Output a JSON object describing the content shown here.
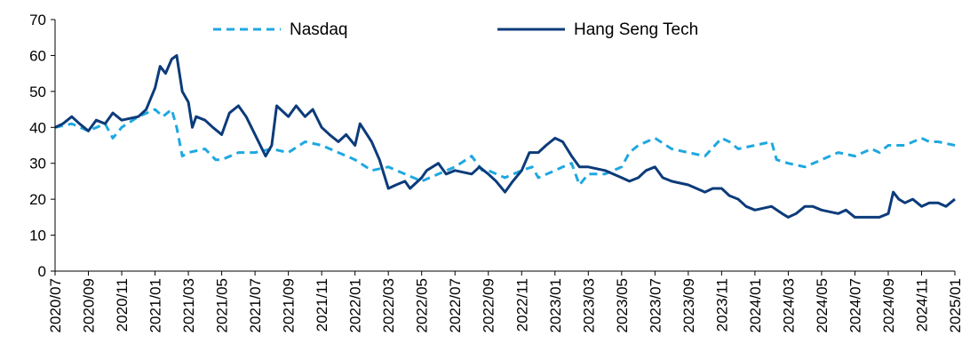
{
  "chart_data": {
    "type": "line",
    "title": "",
    "xlabel": "",
    "ylabel": "",
    "ylim": [
      0,
      70
    ],
    "yticks": [
      0,
      10,
      20,
      30,
      40,
      50,
      60,
      70
    ],
    "x_tick_labels": [
      "2020/07",
      "2020/09",
      "2020/11",
      "2021/01",
      "2021/03",
      "2021/05",
      "2021/07",
      "2021/09",
      "2021/11",
      "2022/01",
      "2022/03",
      "2022/05",
      "2022/07",
      "2022/09",
      "2022/11",
      "2023/01",
      "2023/03",
      "2023/05",
      "2023/07",
      "2023/09",
      "2023/11",
      "2024/01",
      "2024/03",
      "2024/05",
      "2024/07",
      "2024/09",
      "2024/11",
      "2025/01"
    ],
    "grid": false,
    "legend_position": "top",
    "series": [
      {
        "name": "Nasdaq",
        "color": "#1fa8e0",
        "style": "dashed",
        "points": [
          [
            "2020-07",
            40
          ],
          [
            "2020-08",
            41
          ],
          [
            "2020-09",
            39
          ],
          [
            "2020-10",
            41
          ],
          [
            "2020-10-15",
            37
          ],
          [
            "2020-11",
            40
          ],
          [
            "2020-12",
            43
          ],
          [
            "2021-01",
            45
          ],
          [
            "2021-01-15",
            43
          ],
          [
            "2021-02",
            45
          ],
          [
            "2021-02-10",
            40
          ],
          [
            "2021-02-20",
            32
          ],
          [
            "2021-03",
            33
          ],
          [
            "2021-04",
            34
          ],
          [
            "2021-04-20",
            31
          ],
          [
            "2021-05",
            31
          ],
          [
            "2021-06",
            33
          ],
          [
            "2021-07",
            33
          ],
          [
            "2021-08",
            34
          ],
          [
            "2021-09",
            33
          ],
          [
            "2021-10",
            36
          ],
          [
            "2021-11",
            35
          ],
          [
            "2021-12",
            33
          ],
          [
            "2022-01",
            31
          ],
          [
            "2022-02",
            28
          ],
          [
            "2022-03",
            29
          ],
          [
            "2022-04",
            27
          ],
          [
            "2022-05",
            25
          ],
          [
            "2022-06",
            27
          ],
          [
            "2022-07",
            29
          ],
          [
            "2022-08",
            32
          ],
          [
            "2022-08-20",
            28
          ],
          [
            "2022-09",
            28
          ],
          [
            "2022-10",
            26
          ],
          [
            "2022-11",
            28
          ],
          [
            "2022-11-20",
            29
          ],
          [
            "2022-12",
            26
          ],
          [
            "2023-01",
            28
          ],
          [
            "2023-01-15",
            29
          ],
          [
            "2023-02",
            30
          ],
          [
            "2023-02-15",
            24
          ],
          [
            "2023-03",
            27
          ],
          [
            "2023-04",
            27
          ],
          [
            "2023-05",
            29
          ],
          [
            "2023-05-15",
            33
          ],
          [
            "2023-06",
            35
          ],
          [
            "2023-07",
            37
          ],
          [
            "2023-08",
            34
          ],
          [
            "2023-09",
            33
          ],
          [
            "2023-10",
            32
          ],
          [
            "2023-11",
            37
          ],
          [
            "2023-11-15",
            36
          ],
          [
            "2023-12",
            34
          ],
          [
            "2024-01",
            35
          ],
          [
            "2024-02",
            36
          ],
          [
            "2024-02-10",
            31
          ],
          [
            "2024-03",
            30
          ],
          [
            "2024-04",
            29
          ],
          [
            "2024-05",
            31
          ],
          [
            "2024-06",
            33
          ],
          [
            "2024-07",
            32
          ],
          [
            "2024-08",
            34
          ],
          [
            "2024-08-15",
            33
          ],
          [
            "2024-09",
            35
          ],
          [
            "2024-10",
            35
          ],
          [
            "2024-11",
            37
          ],
          [
            "2024-11-15",
            36
          ],
          [
            "2024-12",
            36
          ],
          [
            "2025-01",
            35
          ]
        ]
      },
      {
        "name": "Hang Seng Tech",
        "color": "#0c3b7a",
        "style": "solid",
        "points": [
          [
            "2020-07",
            40
          ],
          [
            "2020-07-15",
            41
          ],
          [
            "2020-08",
            43
          ],
          [
            "2020-08-15",
            41
          ],
          [
            "2020-09",
            39
          ],
          [
            "2020-09-15",
            42
          ],
          [
            "2020-10",
            41
          ],
          [
            "2020-10-15",
            44
          ],
          [
            "2020-11",
            42
          ],
          [
            "2020-12",
            43
          ],
          [
            "2020-12-15",
            45
          ],
          [
            "2021-01",
            51
          ],
          [
            "2021-01-10",
            57
          ],
          [
            "2021-01-20",
            55
          ],
          [
            "2021-02",
            59
          ],
          [
            "2021-02-10",
            60
          ],
          [
            "2021-02-20",
            50
          ],
          [
            "2021-03",
            47
          ],
          [
            "2021-03-08",
            40
          ],
          [
            "2021-03-15",
            43
          ],
          [
            "2021-04",
            42
          ],
          [
            "2021-04-15",
            40
          ],
          [
            "2021-05",
            38
          ],
          [
            "2021-05-15",
            44
          ],
          [
            "2021-06",
            46
          ],
          [
            "2021-06-15",
            43
          ],
          [
            "2021-07",
            38
          ],
          [
            "2021-07-20",
            32
          ],
          [
            "2021-08",
            35
          ],
          [
            "2021-08-10",
            46
          ],
          [
            "2021-09",
            43
          ],
          [
            "2021-09-15",
            46
          ],
          [
            "2021-10",
            43
          ],
          [
            "2021-10-15",
            45
          ],
          [
            "2021-11",
            40
          ],
          [
            "2021-11-15",
            38
          ],
          [
            "2021-12",
            36
          ],
          [
            "2021-12-15",
            38
          ],
          [
            "2022-01",
            35
          ],
          [
            "2022-01-10",
            41
          ],
          [
            "2022-02",
            36
          ],
          [
            "2022-02-15",
            31
          ],
          [
            "2022-03",
            23
          ],
          [
            "2022-03-15",
            24
          ],
          [
            "2022-04",
            25
          ],
          [
            "2022-04-10",
            23
          ],
          [
            "2022-05",
            26
          ],
          [
            "2022-05-10",
            28
          ],
          [
            "2022-06",
            30
          ],
          [
            "2022-06-15",
            27
          ],
          [
            "2022-07",
            28
          ],
          [
            "2022-08",
            27
          ],
          [
            "2022-08-15",
            29
          ],
          [
            "2022-09",
            27
          ],
          [
            "2022-09-15",
            25
          ],
          [
            "2022-10",
            22
          ],
          [
            "2022-10-15",
            25
          ],
          [
            "2022-11",
            28
          ],
          [
            "2022-11-15",
            33
          ],
          [
            "2022-12",
            33
          ],
          [
            "2022-12-15",
            35
          ],
          [
            "2023-01",
            37
          ],
          [
            "2023-01-15",
            36
          ],
          [
            "2023-02",
            32
          ],
          [
            "2023-02-15",
            29
          ],
          [
            "2023-03",
            29
          ],
          [
            "2023-04",
            28
          ],
          [
            "2023-05",
            26
          ],
          [
            "2023-05-15",
            25
          ],
          [
            "2023-06",
            26
          ],
          [
            "2023-06-15",
            28
          ],
          [
            "2023-07",
            29
          ],
          [
            "2023-07-15",
            26
          ],
          [
            "2023-08",
            25
          ],
          [
            "2023-09",
            24
          ],
          [
            "2023-10",
            22
          ],
          [
            "2023-10-15",
            23
          ],
          [
            "2023-11",
            23
          ],
          [
            "2023-11-15",
            21
          ],
          [
            "2023-12",
            20
          ],
          [
            "2023-12-15",
            18
          ],
          [
            "2024-01",
            17
          ],
          [
            "2024-02",
            18
          ],
          [
            "2024-02-20",
            16
          ],
          [
            "2024-03",
            15
          ],
          [
            "2024-03-15",
            16
          ],
          [
            "2024-04",
            18
          ],
          [
            "2024-04-15",
            18
          ],
          [
            "2024-05",
            17
          ],
          [
            "2024-06",
            16
          ],
          [
            "2024-06-15",
            17
          ],
          [
            "2024-07",
            15
          ],
          [
            "2024-08",
            15
          ],
          [
            "2024-08-15",
            15
          ],
          [
            "2024-09",
            16
          ],
          [
            "2024-09-10",
            22
          ],
          [
            "2024-09-20",
            20
          ],
          [
            "2024-10",
            19
          ],
          [
            "2024-10-15",
            20
          ],
          [
            "2024-11",
            18
          ],
          [
            "2024-11-15",
            19
          ],
          [
            "2024-12",
            19
          ],
          [
            "2024-12-15",
            18
          ],
          [
            "2025-01",
            20
          ]
        ]
      }
    ]
  }
}
